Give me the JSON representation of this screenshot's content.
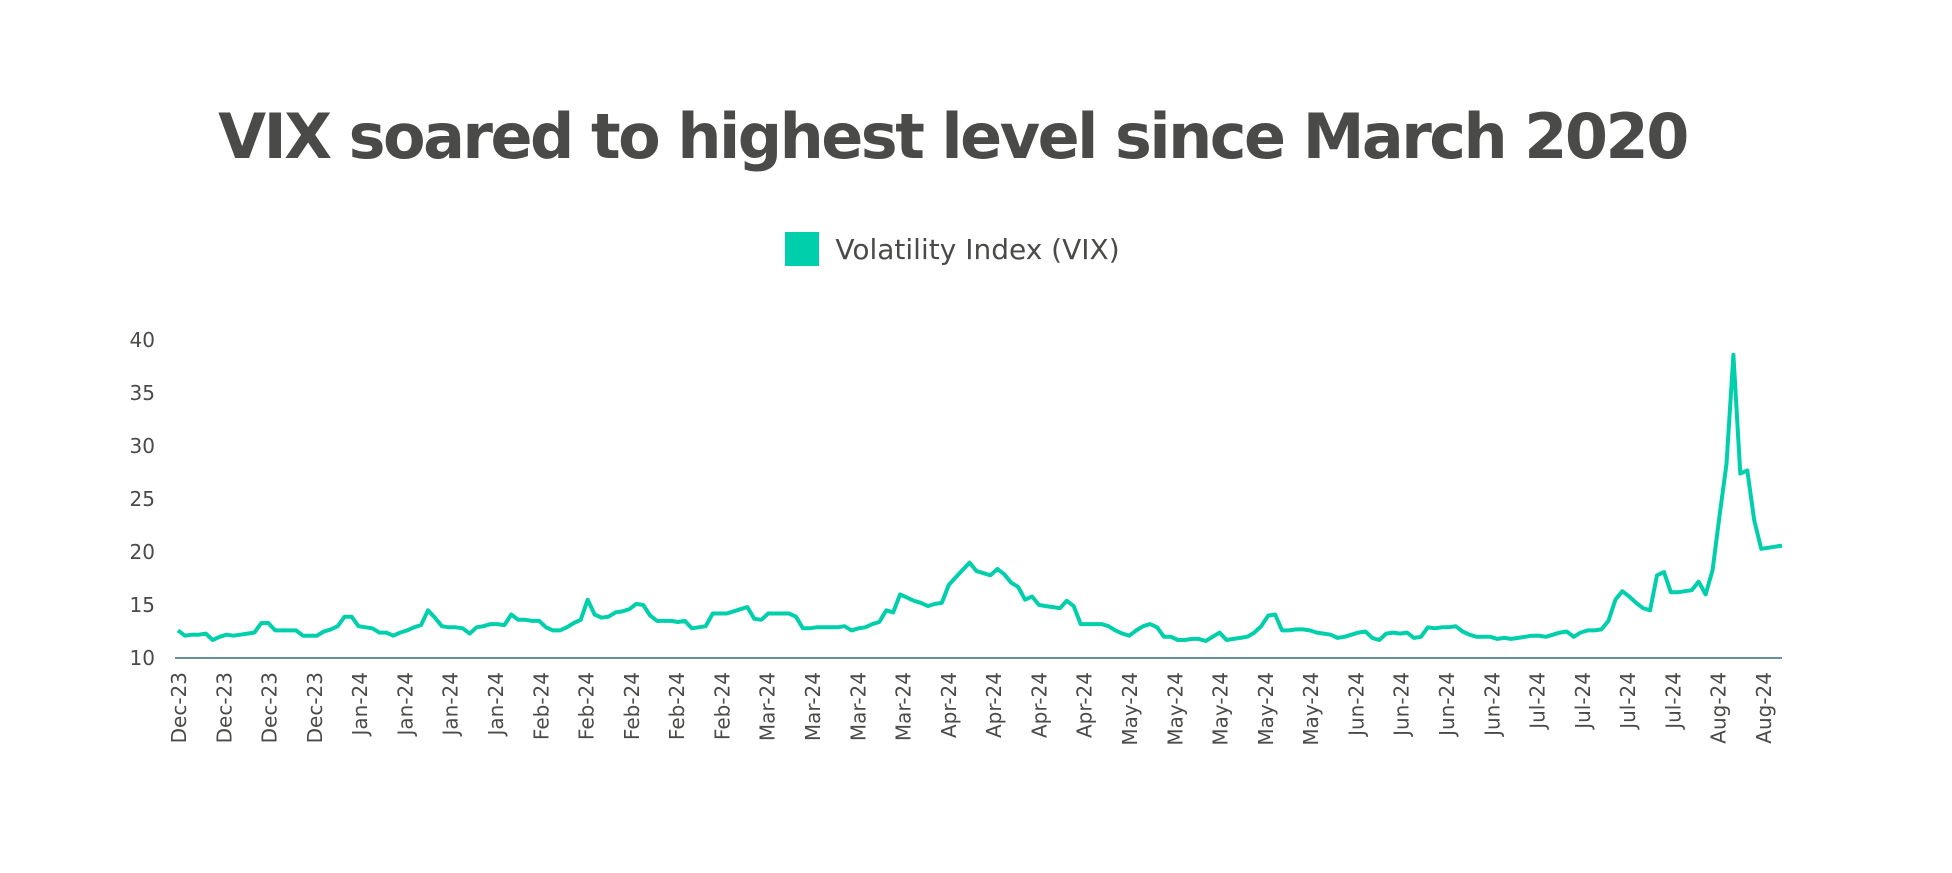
{
  "chart_data": {
    "type": "line",
    "title": "VIX soared to highest level since March 2020",
    "legend": {
      "position": "top-center"
    },
    "grid": false,
    "ylim": [
      10,
      40
    ],
    "yticks": [
      10,
      15,
      20,
      25,
      30,
      35,
      40
    ],
    "xtick_labels": [
      "Dec-23",
      "Dec-23",
      "Dec-23",
      "Dec-23",
      "Jan-24",
      "Jan-24",
      "Jan-24",
      "Jan-24",
      "Feb-24",
      "Feb-24",
      "Feb-24",
      "Feb-24",
      "Feb-24",
      "Mar-24",
      "Mar-24",
      "Mar-24",
      "Mar-24",
      "Apr-24",
      "Apr-24",
      "Apr-24",
      "Apr-24",
      "May-24",
      "May-24",
      "May-24",
      "May-24",
      "May-24",
      "Jun-24",
      "Jun-24",
      "Jun-24",
      "Jun-24",
      "Jul-24",
      "Jul-24",
      "Jul-24",
      "Jul-24",
      "Aug-24",
      "Aug-24"
    ],
    "series": [
      {
        "name": "Volatility Index (VIX)",
        "color": "#00cfac",
        "values": [
          12.6,
          12.1,
          12.2,
          12.2,
          12.3,
          11.7,
          12.0,
          12.2,
          12.1,
          12.2,
          12.3,
          12.4,
          13.3,
          13.3,
          12.6,
          12.6,
          12.6,
          12.6,
          12.1,
          12.1,
          12.1,
          12.5,
          12.7,
          13.0,
          13.9,
          13.9,
          13.0,
          12.9,
          12.8,
          12.4,
          12.4,
          12.1,
          12.4,
          12.6,
          12.9,
          13.1,
          14.5,
          13.8,
          13.0,
          12.9,
          12.9,
          12.8,
          12.3,
          12.9,
          13.0,
          13.2,
          13.2,
          13.1,
          14.1,
          13.6,
          13.6,
          13.5,
          13.5,
          12.9,
          12.6,
          12.6,
          12.9,
          13.3,
          13.6,
          15.5,
          14.1,
          13.8,
          13.9,
          14.3,
          14.4,
          14.6,
          15.1,
          15.0,
          14.0,
          13.5,
          13.5,
          13.5,
          13.4,
          13.5,
          12.8,
          12.9,
          13.0,
          14.2,
          14.2,
          14.2,
          14.4,
          14.6,
          14.8,
          13.7,
          13.6,
          14.2,
          14.2,
          14.2,
          14.2,
          13.9,
          12.8,
          12.8,
          12.9,
          12.9,
          12.9,
          12.9,
          13.0,
          12.6,
          12.8,
          12.9,
          13.2,
          13.4,
          14.5,
          14.3,
          16.0,
          15.7,
          15.4,
          15.2,
          14.9,
          15.1,
          15.2,
          16.9,
          17.6,
          18.3,
          19.0,
          18.2,
          18.0,
          17.8,
          18.4,
          17.9,
          17.1,
          16.7,
          15.5,
          15.8,
          15.0,
          14.9,
          14.8,
          14.7,
          15.4,
          14.9,
          13.2,
          13.2,
          13.2,
          13.2,
          13.0,
          12.6,
          12.3,
          12.1,
          12.6,
          13.0,
          13.2,
          12.9,
          12.0,
          12.0,
          11.7,
          11.7,
          11.8,
          11.8,
          11.6,
          12.0,
          12.4,
          11.7,
          11.8,
          11.9,
          12.0,
          12.4,
          13.0,
          14.0,
          14.1,
          12.6,
          12.6,
          12.7,
          12.7,
          12.6,
          12.4,
          12.3,
          12.2,
          11.9,
          12.0,
          12.2,
          12.4,
          12.5,
          11.9,
          11.7,
          12.3,
          12.4,
          12.3,
          12.4,
          11.9,
          12.0,
          12.9,
          12.8,
          12.9,
          12.9,
          13.0,
          12.5,
          12.2,
          12.0,
          12.0,
          12.0,
          11.8,
          11.9,
          11.8,
          11.9,
          12.0,
          12.1,
          12.1,
          12.0,
          12.2,
          12.4,
          12.5,
          12.0,
          12.4,
          12.6,
          12.6,
          12.7,
          13.5,
          15.5,
          16.3,
          15.8,
          15.2,
          14.7,
          14.5,
          17.8,
          18.1,
          16.2,
          16.2,
          16.3,
          16.4,
          17.2,
          16.0,
          18.3,
          23.4,
          28.3,
          38.6,
          27.4,
          27.7,
          23.0,
          20.3,
          20.4,
          20.5,
          20.6
        ]
      }
    ]
  }
}
